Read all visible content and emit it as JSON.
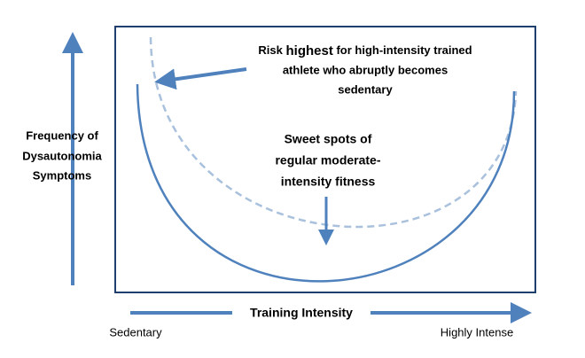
{
  "y_axis_label": [
    "Frequency of",
    "Dysautonomia",
    "Symptoms"
  ],
  "x_axis_label": "Training Intensity",
  "x_start_label": "Sedentary",
  "x_end_label": "Highly Intense",
  "risk_annotation": {
    "first_line": [
      "Risk",
      "highest",
      "for high-intensity trained"
    ],
    "lines": [
      "athlete who abruptly becomes",
      "sedentary"
    ]
  },
  "sweet_spot_annotation": [
    "Sweet spots of",
    "regular moderate-",
    "intensity fitness"
  ]
}
